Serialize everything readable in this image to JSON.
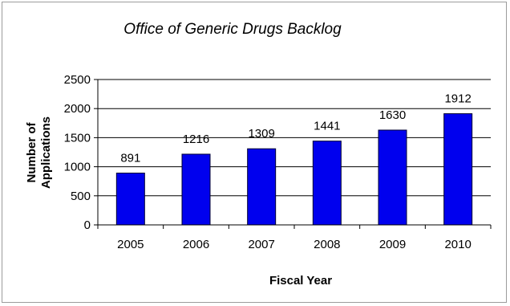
{
  "chart_data": {
    "type": "bar",
    "title": "Office of Generic Drugs Backlog",
    "xlabel": "Fiscal Year",
    "ylabel": [
      "Number of",
      "Applications"
    ],
    "categories": [
      "2005",
      "2006",
      "2007",
      "2008",
      "2009",
      "2010"
    ],
    "values": [
      891,
      1216,
      1309,
      1441,
      1630,
      1912
    ],
    "ylim": [
      0,
      2500
    ],
    "yticks": [
      0,
      500,
      1000,
      1500,
      2000,
      2500
    ],
    "grid": true,
    "legend": "none",
    "colors": {
      "bar": "#0000ee",
      "bar_edge": "#000033",
      "grid": "#000000"
    }
  }
}
